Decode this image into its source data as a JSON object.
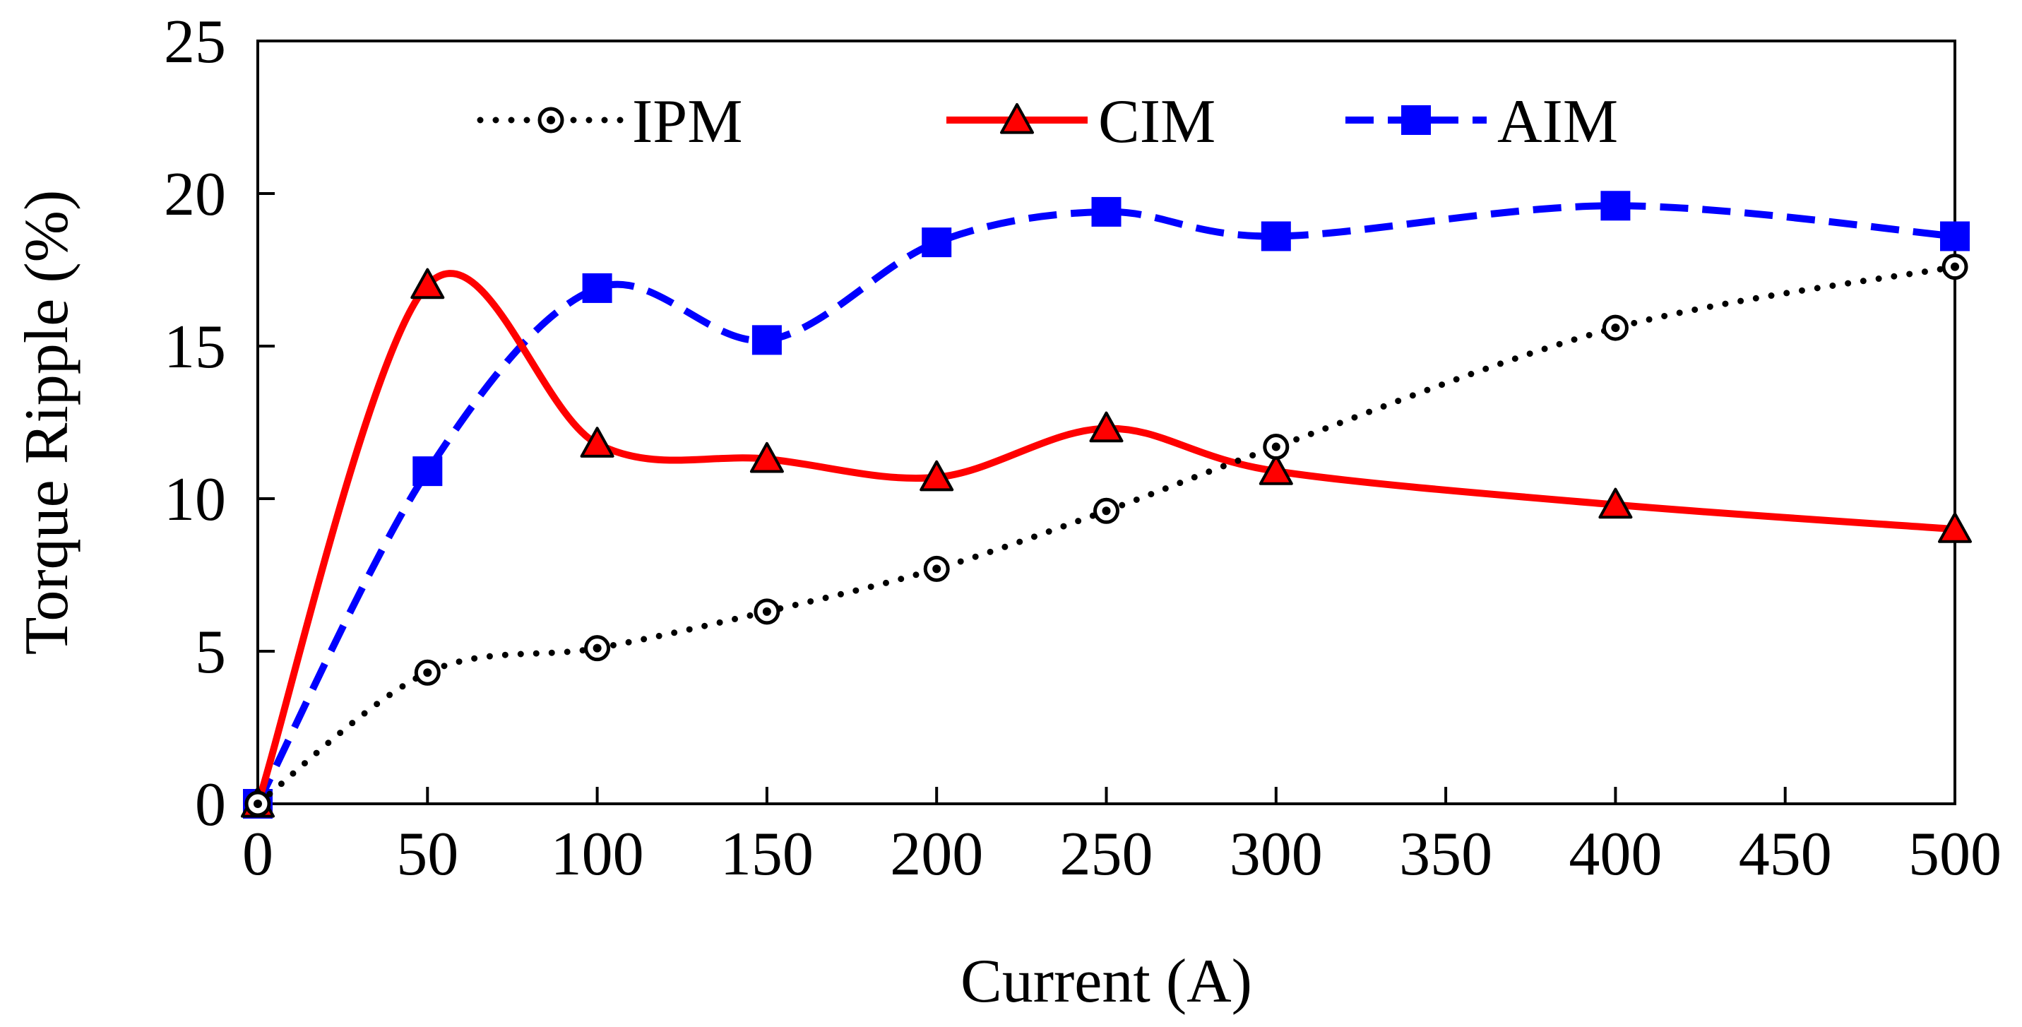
{
  "chart_data": {
    "type": "line",
    "title": "",
    "xlabel": "Current (A)",
    "ylabel": "Torque Ripple (%)",
    "xlim": [
      0,
      500
    ],
    "ylim": [
      0,
      25
    ],
    "x_ticks": [
      0,
      50,
      100,
      150,
      200,
      250,
      300,
      350,
      400,
      450,
      500
    ],
    "y_ticks": [
      0,
      5,
      10,
      15,
      20,
      25
    ],
    "grid": false,
    "legend_position": "top",
    "series": [
      {
        "name": "IPM",
        "color": "#000000",
        "line_style": "dotted",
        "marker": "circle-dot",
        "x": [
          0,
          50,
          100,
          150,
          200,
          250,
          300,
          400,
          500
        ],
        "values": [
          0,
          4.3,
          5.1,
          6.3,
          7.7,
          9.6,
          11.7,
          15.6,
          17.6
        ]
      },
      {
        "name": "CIM",
        "color": "#ff0000",
        "line_style": "solid",
        "marker": "triangle",
        "x": [
          0,
          50,
          100,
          150,
          200,
          250,
          300,
          400,
          500
        ],
        "values": [
          0,
          17.0,
          11.8,
          11.3,
          10.7,
          12.3,
          10.9,
          9.8,
          9.0
        ]
      },
      {
        "name": "AIM",
        "color": "#0000ff",
        "line_style": "dashed",
        "marker": "square",
        "x": [
          0,
          50,
          100,
          150,
          200,
          250,
          300,
          400,
          500
        ],
        "values": [
          0,
          10.9,
          16.9,
          15.2,
          18.4,
          19.4,
          18.6,
          19.6,
          18.6
        ]
      }
    ]
  }
}
